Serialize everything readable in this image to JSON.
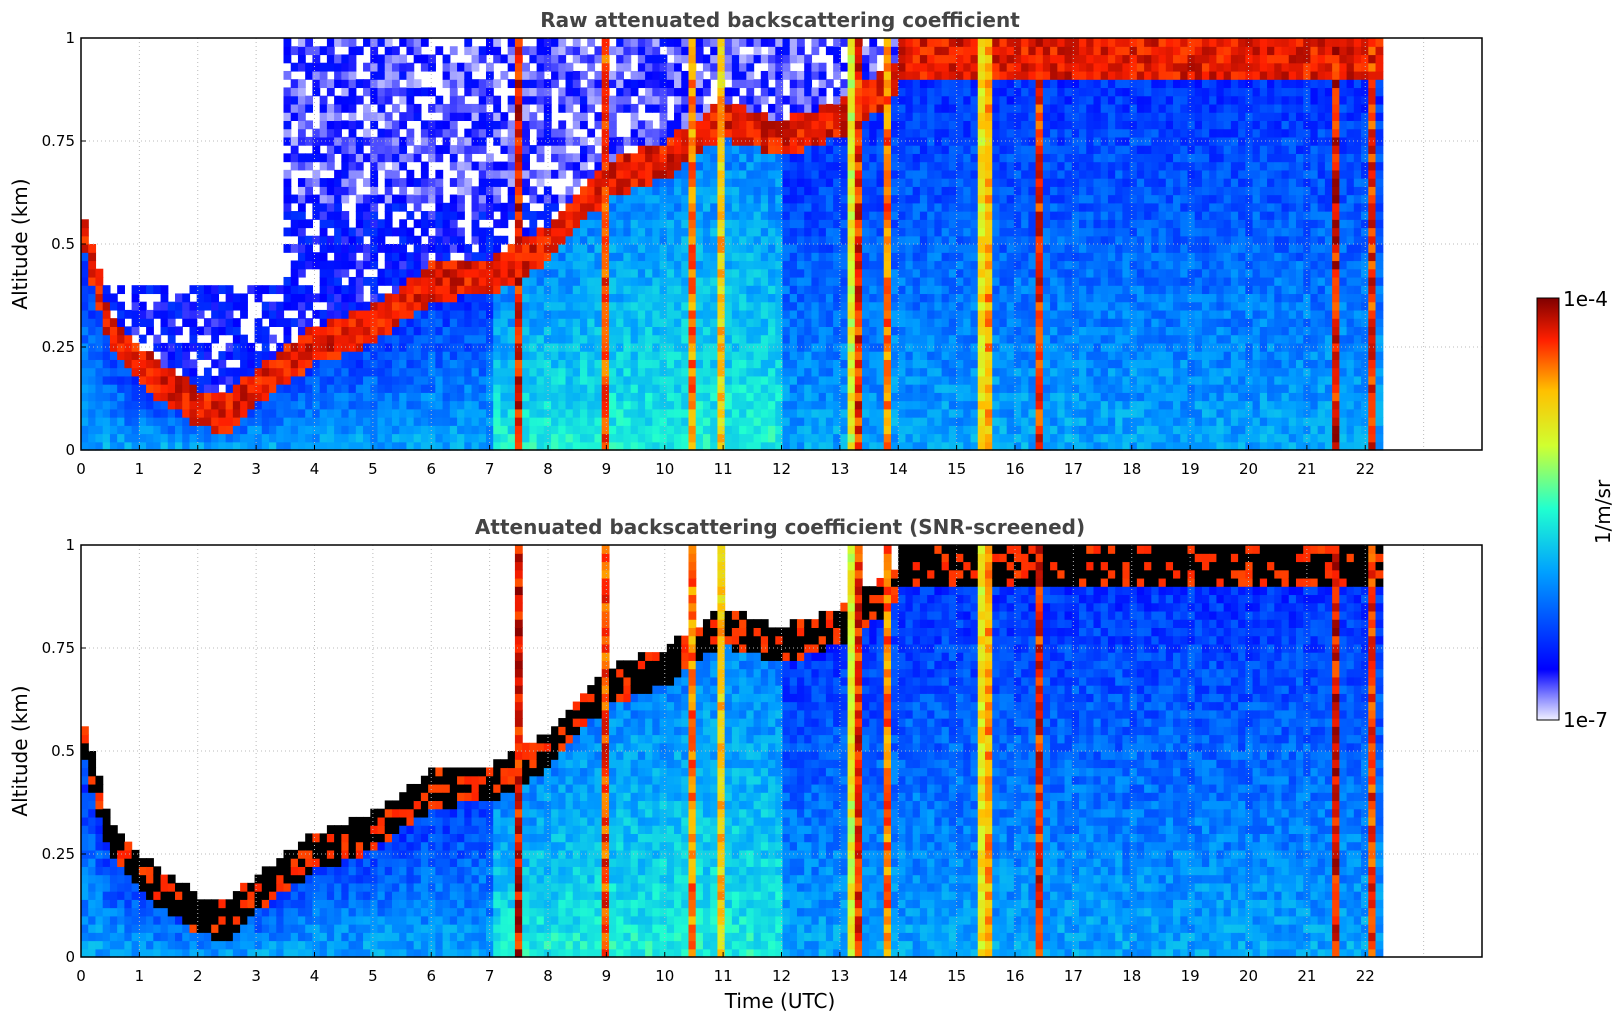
{
  "figure": {
    "xlabel": "Time (UTC)",
    "colorbar": {
      "label": "1/m/sr",
      "min_label": "1e-7",
      "max_label": "1e-4",
      "colormap": "jet",
      "scale": "log"
    }
  },
  "chart_data": [
    {
      "type": "heatmap",
      "title": "Raw attenuated backscattering coefficient",
      "xlabel": "",
      "ylabel": "Altitude (km)",
      "xlim": [
        0,
        24
      ],
      "ylim": [
        0,
        1
      ],
      "x_ticks": [
        "0",
        "1",
        "2",
        "3",
        "4",
        "5",
        "6",
        "7",
        "8",
        "9",
        "10",
        "11",
        "12",
        "13",
        "14",
        "15",
        "16",
        "17",
        "18",
        "19",
        "20",
        "21",
        "22"
      ],
      "y_ticks": [
        "0",
        "0.25",
        "0.5",
        "0.75",
        "1"
      ],
      "grid": true,
      "data_end_hour": 22.3,
      "cloud_base_km": [
        {
          "t": 0.0,
          "base": 0.55
        },
        {
          "t": 0.5,
          "base": 0.28
        },
        {
          "t": 1.0,
          "base": 0.2
        },
        {
          "t": 1.5,
          "base": 0.15
        },
        {
          "t": 2.0,
          "base": 0.1
        },
        {
          "t": 2.5,
          "base": 0.08
        },
        {
          "t": 3.0,
          "base": 0.15
        },
        {
          "t": 4.0,
          "base": 0.25
        },
        {
          "t": 5.0,
          "base": 0.3
        },
        {
          "t": 6.0,
          "base": 0.4
        },
        {
          "t": 7.0,
          "base": 0.42
        },
        {
          "t": 7.5,
          "base": 0.45
        },
        {
          "t": 8.0,
          "base": 0.5
        },
        {
          "t": 9.0,
          "base": 0.65
        },
        {
          "t": 10.0,
          "base": 0.7
        },
        {
          "t": 11.0,
          "base": 0.8
        },
        {
          "t": 12.0,
          "base": 0.75
        },
        {
          "t": 13.0,
          "base": 0.8
        },
        {
          "t": 14.0,
          "base": 0.9
        }
      ],
      "precip_columns_hour": [
        {
          "t": 7.5,
          "w": 0.15
        },
        {
          "t": 9.0,
          "w": 0.2
        },
        {
          "t": 10.5,
          "w": 0.2
        },
        {
          "t": 11.0,
          "w": 0.15
        },
        {
          "t": 13.3,
          "w": 0.3
        },
        {
          "t": 13.8,
          "w": 0.1
        },
        {
          "t": 15.5,
          "w": 0.25
        },
        {
          "t": 16.4,
          "w": 0.25
        },
        {
          "t": 21.5,
          "w": 0.15
        },
        {
          "t": 22.1,
          "w": 0.2
        }
      ]
    },
    {
      "type": "heatmap",
      "title": "Attenuated backscattering coefficient (SNR-screened)",
      "xlabel": "Time (UTC)",
      "ylabel": "Altitude (km)",
      "xlim": [
        0,
        24
      ],
      "ylim": [
        0,
        1
      ],
      "x_ticks": [
        "0",
        "1",
        "2",
        "3",
        "4",
        "5",
        "6",
        "7",
        "8",
        "9",
        "10",
        "11",
        "12",
        "13",
        "14",
        "15",
        "16",
        "17",
        "18",
        "19",
        "20",
        "21",
        "22"
      ],
      "y_ticks": [
        "0",
        "0.25",
        "0.5",
        "0.75",
        "1"
      ],
      "grid": true,
      "data_end_hour": 22.3,
      "screened": true
    }
  ]
}
